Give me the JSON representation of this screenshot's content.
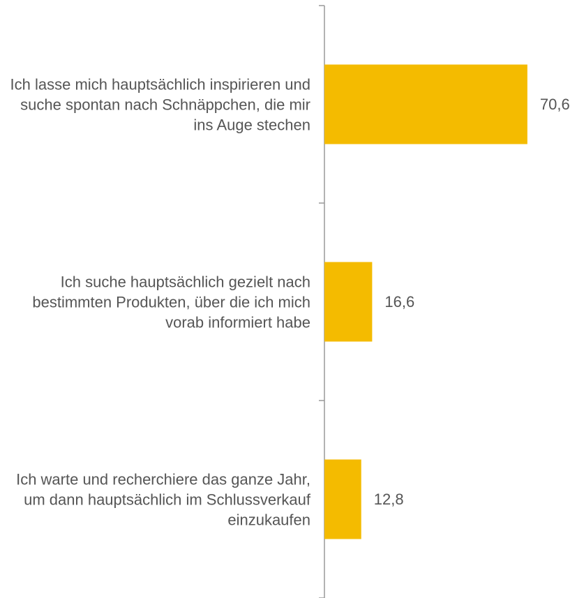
{
  "chart_data": {
    "type": "barh",
    "categories": [
      "Ich lasse mich hauptsächlich inspirieren und suche spontan nach Schnäppchen, die mir ins Auge stechen",
      "Ich suche hauptsächlich gezielt nach bestimmten Produkten, über die ich mich vorab informiert habe",
      "Ich warte und recherchiere das ganze Jahr, um dann hauptsächlich im Schlussverkauf einzukaufen"
    ],
    "values": [
      70.6,
      16.6,
      12.8
    ],
    "value_labels": [
      "70,6",
      "16,6",
      "12,8"
    ],
    "color": "#f4bb00"
  }
}
